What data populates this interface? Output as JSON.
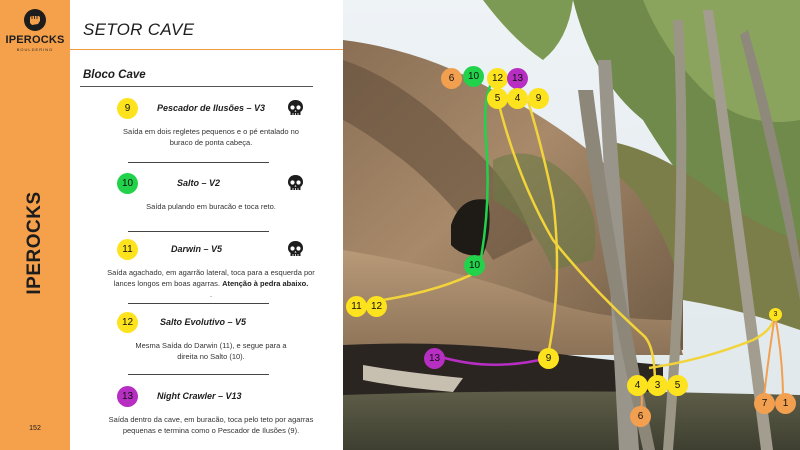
{
  "brand": {
    "name": "IPEROCKS",
    "sub": "BOULDERING",
    "vertical": "IPEROCKS"
  },
  "page_number": "152",
  "sector_title": "SETOR CAVE",
  "block_title": "Bloco Cave",
  "colors": {
    "accent": "#f5a04a",
    "grade_yellow": "#fde21e",
    "grade_green": "#22d24a",
    "grade_purple": "#b62ec2",
    "grade_orange": "#f2a050"
  },
  "routes": [
    {
      "number": "9",
      "name": "Pescador de Ilusões  – V3",
      "color": "yellow",
      "icon": "skull-icon",
      "desc": [
        "Saída em dois regletes pequenos e o pé entalado no",
        "buraco de ponta cabeça."
      ]
    },
    {
      "number": "10",
      "name": "Salto – V2",
      "color": "green",
      "icon": "skull-icon",
      "desc": [
        "Saída pulando em buracão e toca reto."
      ]
    },
    {
      "number": "11",
      "name": "Darwin  – V5",
      "color": "yellow",
      "icon": "skull-icon",
      "desc": [
        "Saída agachado, em agarrão lateral, toca para a esquerda por",
        "lances longos em boas agarras. "
      ],
      "desc_bold": "Atenção à pedra abaixo.",
      "desc_tail": "."
    },
    {
      "number": "12",
      "name": "Salto Evolutivo – V5",
      "color": "yellow",
      "desc": [
        "Mesma Saída do Darwin (11), e segue para a",
        "direita no Salto (10)."
      ]
    },
    {
      "number": "13",
      "name": "Night Crawler – V13",
      "color": "purple",
      "desc": [
        "Saída dentro da cave, em buracão, toca pelo teto por agarras",
        "pequenas e termina como o Pescador de Ilusões (9)."
      ]
    }
  ],
  "photo_markers": [
    {
      "label": "6",
      "color": "orange"
    },
    {
      "label": "10",
      "color": "green"
    },
    {
      "label": "12",
      "color": "yellow"
    },
    {
      "label": "13",
      "color": "purple"
    },
    {
      "label": "5",
      "color": "yellow"
    },
    {
      "label": "4",
      "color": "yellow"
    },
    {
      "label": "9",
      "color": "yellow"
    },
    {
      "label": "10",
      "color": "green"
    },
    {
      "label": "11",
      "color": "yellow"
    },
    {
      "label": "12",
      "color": "yellow"
    },
    {
      "label": "3",
      "color": "yellow"
    },
    {
      "label": "13",
      "color": "purple"
    },
    {
      "label": "9",
      "color": "yellow"
    },
    {
      "label": "4",
      "color": "yellow"
    },
    {
      "label": "3",
      "color": "yellow"
    },
    {
      "label": "5",
      "color": "yellow"
    },
    {
      "label": "6",
      "color": "orange"
    },
    {
      "label": "7",
      "color": "orange"
    },
    {
      "label": "1",
      "color": "orange"
    }
  ]
}
